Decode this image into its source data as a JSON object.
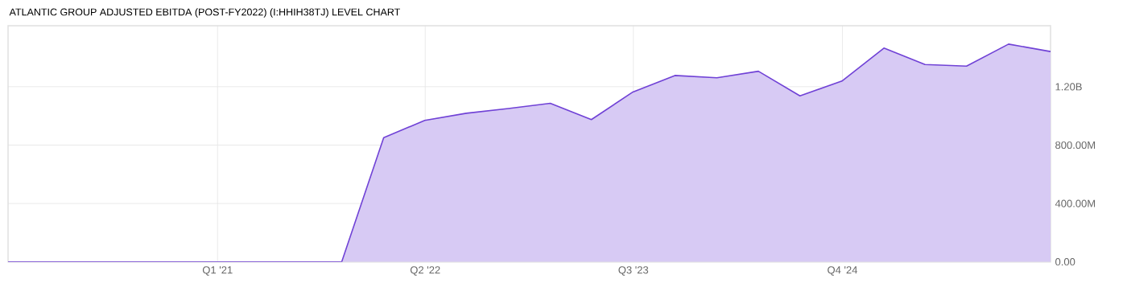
{
  "chart_data": {
    "type": "area",
    "title": "ATLANTIC GROUP ADJUSTED EBITDA (POST-FY2022) (I:HHIH38TJ) LEVEL CHART",
    "x": [
      "2019-09-30",
      "2019-12-31",
      "2020-03-31",
      "2020-06-30",
      "2020-09-30",
      "2020-12-31",
      "2021-03-31",
      "2021-06-30",
      "2021-09-30",
      "2021-12-31",
      "2022-03-31",
      "2022-06-30",
      "2022-09-30",
      "2022-12-31",
      "2023-03-31",
      "2023-06-30",
      "2023-09-30",
      "2023-12-31",
      "2024-03-31",
      "2024-06-30",
      "2024-09-30",
      "2024-12-31",
      "2025-03-31",
      "2025-06-30",
      "2025-09-30",
      "2025-12-31"
    ],
    "series": [
      {
        "color": "#7042d6",
        "values": [
          0,
          0,
          0,
          0,
          0,
          0,
          0,
          0,
          0,
          851000000,
          969000000,
          1018000000,
          1051000000,
          1086000000,
          975000000,
          1164000000,
          1277000000,
          1261000000,
          1306000000,
          1137000000,
          1239000000,
          1465000000,
          1352000000,
          1341000000,
          1492000000,
          1441000000
        ]
      }
    ],
    "xlim": [
      "2019-09-30",
      "2025-12-31"
    ],
    "xticks": [
      {
        "value": "2021-01-01",
        "label": "Q1 '21"
      },
      {
        "value": "2022-04-01",
        "label": "Q2 '22"
      },
      {
        "value": "2023-07-01",
        "label": "Q3 '23"
      },
      {
        "value": "2024-10-01",
        "label": "Q4 '24"
      }
    ],
    "ylim": [
      0,
      1618000000
    ],
    "yticks": [
      {
        "value": 0,
        "label": "0.00"
      },
      {
        "value": 400000000,
        "label": "400.00M"
      },
      {
        "value": 800000000,
        "label": "800.00M"
      },
      {
        "value": 1200000000,
        "label": "1.20B"
      }
    ],
    "grid": true
  }
}
